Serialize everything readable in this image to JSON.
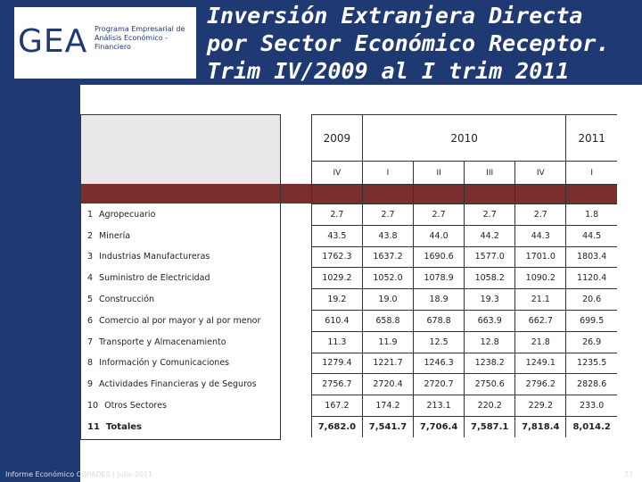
{
  "logo": {
    "text": "GEA",
    "subtitle": "Programa Empresarial de Análisis Económico - Financiero"
  },
  "title": "Inversión Extranjera Directa por Sector Económico Receptor. Trim IV/2009 al I trim 2011",
  "table": {
    "years": [
      "2009",
      "2010",
      "2011"
    ],
    "quarters": [
      "IV",
      "I",
      "II",
      "III",
      "IV",
      "I"
    ],
    "rows": [
      {
        "num": "1",
        "label": "Agropecuario",
        "values": [
          "2.7",
          "2.7",
          "2.7",
          "2.7",
          "2.7",
          "1.8"
        ]
      },
      {
        "num": "2",
        "label": "Minería",
        "values": [
          "43.5",
          "43.8",
          "44.0",
          "44.2",
          "44.3",
          "44.5"
        ]
      },
      {
        "num": "3",
        "label": "Industrias Manufactureras",
        "values": [
          "1762.3",
          "1637.2",
          "1690.6",
          "1577.0",
          "1701.0",
          "1803.4"
        ]
      },
      {
        "num": "4",
        "label": "Suministro de Electricidad",
        "values": [
          "1029.2",
          "1052.0",
          "1078.9",
          "1058.2",
          "1090.2",
          "1120.4"
        ]
      },
      {
        "num": "5",
        "label": "Construcción",
        "values": [
          "19.2",
          "19.0",
          "18.9",
          "19.3",
          "21.1",
          "20.6"
        ]
      },
      {
        "num": "6",
        "label": "Comercio al por mayor y al por menor",
        "values": [
          "610.4",
          "658.8",
          "678.8",
          "663.9",
          "662.7",
          "699.5"
        ]
      },
      {
        "num": "7",
        "label": "Transporte y Almacenamiento",
        "values": [
          "11.3",
          "11.9",
          "12.5",
          "12.8",
          "21.8",
          "26.9"
        ]
      },
      {
        "num": "8",
        "label": "Información y Comunicaciones",
        "values": [
          "1279.4",
          "1221.7",
          "1246.3",
          "1238.2",
          "1249.1",
          "1235.5"
        ]
      },
      {
        "num": "9",
        "label": "Actividades Financieras y de Seguros",
        "values": [
          "2756.7",
          "2720.4",
          "2720.7",
          "2750.6",
          "2796.2",
          "2828.6"
        ]
      },
      {
        "num": "10",
        "label": "Otros Sectores",
        "values": [
          "167.2",
          "174.2",
          "213.1",
          "220.2",
          "229.2",
          "233.0"
        ]
      }
    ],
    "totals": {
      "num": "11",
      "label": "Totales",
      "values": [
        "7,682.0",
        "7,541.7",
        "7,706.4",
        "7,587.1",
        "7,818.4",
        "8,014.2"
      ]
    }
  },
  "footer": "Informe Económico COPADES | Julio 2011",
  "page_number": "77"
}
